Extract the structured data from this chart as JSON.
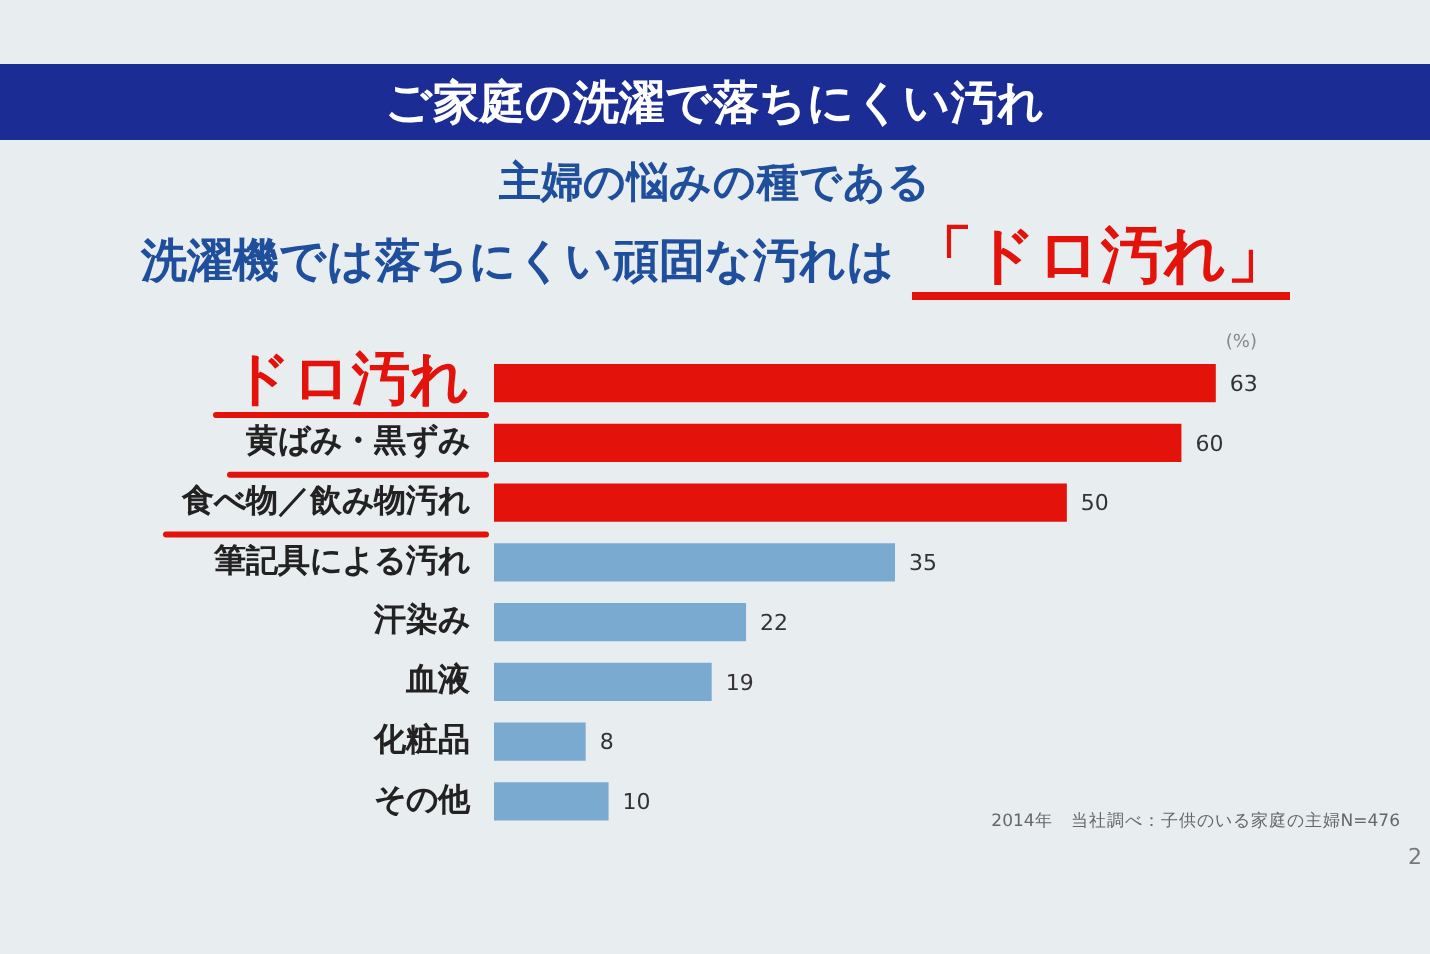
{
  "chart_data": {
    "type": "bar",
    "orientation": "horizontal",
    "title": "ご家庭の洗濯で落ちにくい汚れ",
    "subtitle": "主婦の悩みの種である",
    "xlabel": "(%)",
    "categories": [
      "ドロ汚れ",
      "黄ばみ・黒ずみ",
      "食べ物／飲み物汚れ",
      "筆記具による汚れ",
      "汗染み",
      "血液",
      "化粧品",
      "その他"
    ],
    "values": [
      63,
      60,
      50,
      35,
      22,
      19,
      8,
      10
    ],
    "colors": [
      "#e3120b",
      "#e3120b",
      "#e3120b",
      "#7aaad0",
      "#7aaad0",
      "#7aaad0",
      "#7aaad0",
      "#7aaad0"
    ],
    "data_labels": true,
    "annotations": [
      "洗濯機では落ちにくい頑固な汚れは",
      "「ドロ汚れ」",
      "2014年　当社調べ：子供のいる家庭の主婦N=476",
      "2"
    ]
  }
}
